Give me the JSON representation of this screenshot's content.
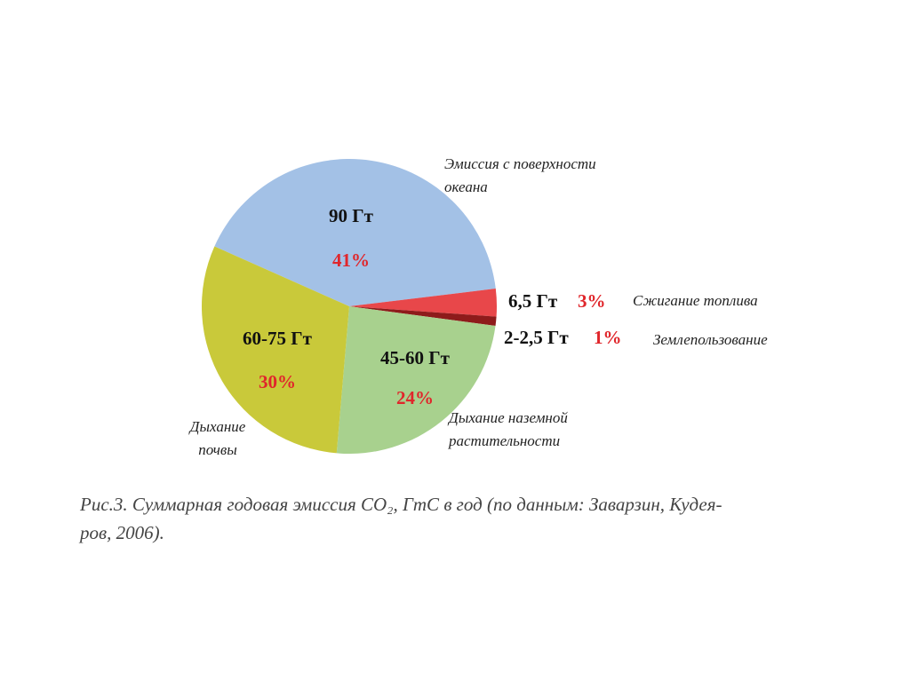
{
  "chart_data": {
    "type": "pie",
    "categories": [
      "Эмиссия с поверхности океана",
      "Сжигание топлива",
      "Землепользование",
      "Дыхание наземной растительности",
      "Дыхание почвы"
    ],
    "values": [
      41,
      3,
      1,
      24,
      30
    ],
    "value_labels": [
      "41%",
      "3%",
      "1%",
      "24%",
      "30%"
    ],
    "amounts": [
      "90 Гт",
      "6,5 Гт",
      "2-2,5 Гт",
      "45-60 Гт",
      "60-75 Гт"
    ],
    "colors": [
      "#a3c1e6",
      "#e8474a",
      "#8e1b1b",
      "#a8d18e",
      "#c9c93a"
    ],
    "caption": [
      "Рис.3. Суммарная годовая эмиссия CO₂, ГтС в год (по данным: Заварзин, Кудея-",
      "ров, 2006)."
    ]
  }
}
